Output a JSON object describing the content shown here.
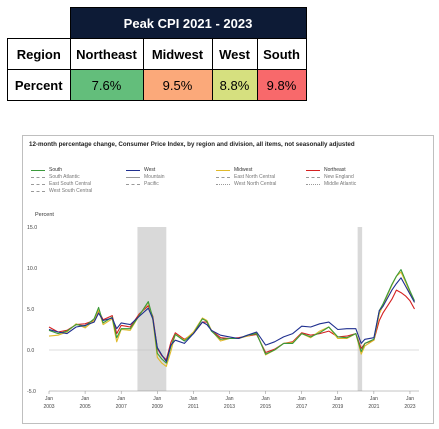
{
  "summary_table": {
    "title": "Peak CPI 2021 - 2023",
    "row_header_region": "Region",
    "row_header_percent": "Percent",
    "regions": [
      {
        "name": "Northeast",
        "value": "7.6%",
        "color": "#63be7b"
      },
      {
        "name": "Midwest",
        "value": "9.5%",
        "color": "#fba97a"
      },
      {
        "name": "West",
        "value": "8.8%",
        "color": "#d6e07f"
      },
      {
        "name": "South",
        "value": "9.8%",
        "color": "#f8696b"
      }
    ]
  },
  "chart_data": {
    "type": "line",
    "title": "12-month percentage change, Consumer Price Index, by region and division, all items, not seasonally adjusted",
    "ylabel": "Percent",
    "xlabel": "",
    "ylim": [
      -5.0,
      15.0
    ],
    "y_ticks": [
      "15.0",
      "10.0",
      "5.0",
      "0.0",
      "-5.0"
    ],
    "y_tick_values": [
      15,
      10,
      5,
      0,
      -5
    ],
    "xlim": [
      2003,
      2023.5
    ],
    "x_ticks": [
      {
        "year": 2003,
        "top": "Jan",
        "bottom": "2003"
      },
      {
        "year": 2005,
        "top": "Jan",
        "bottom": "2005"
      },
      {
        "year": 2007,
        "top": "Jan",
        "bottom": "2007"
      },
      {
        "year": 2009,
        "top": "Jan",
        "bottom": "2009"
      },
      {
        "year": 2011,
        "top": "Jan",
        "bottom": "2011"
      },
      {
        "year": 2013,
        "top": "Jan",
        "bottom": "2013"
      },
      {
        "year": 2015,
        "top": "Jan",
        "bottom": "2015"
      },
      {
        "year": 2017,
        "top": "Jan",
        "bottom": "2017"
      },
      {
        "year": 2019,
        "top": "Jan",
        "bottom": "2019"
      },
      {
        "year": 2021,
        "top": "Jan",
        "bottom": "2021"
      },
      {
        "year": 2023,
        "top": "Jan",
        "bottom": "2023"
      }
    ],
    "recessions": [
      {
        "start": 2007.9,
        "end": 2009.5
      },
      {
        "start": 2020.1,
        "end": 2020.35
      }
    ],
    "legend": {
      "main": [
        {
          "name": "South",
          "color": "#3a9a3a"
        },
        {
          "name": "West",
          "color": "#1f2f8f"
        },
        {
          "name": "Midwest",
          "color": "#e0b92a"
        },
        {
          "name": "Northeast",
          "color": "#d42020"
        }
      ],
      "divisions": [
        {
          "name": "South Atlantic",
          "style": "dash"
        },
        {
          "name": "Mountain",
          "style": "solid"
        },
        {
          "name": "East North Central",
          "style": "dash"
        },
        {
          "name": "New England",
          "style": "dash"
        },
        {
          "name": "East South Central",
          "style": "dash"
        },
        {
          "name": "Pacific",
          "style": "dash"
        },
        {
          "name": "West North Central",
          "style": "dashdot"
        },
        {
          "name": "Middle Atlantic",
          "style": "dashdot"
        },
        {
          "name": "West South Central",
          "style": "dash"
        }
      ]
    },
    "series": [
      {
        "name": "Northeast",
        "color": "#d42020",
        "x": [
          2003,
          2003.5,
          2004,
          2004.5,
          2005,
          2005.5,
          2005.75,
          2006,
          2006.5,
          2006.75,
          2007,
          2007.5,
          2008,
          2008.5,
          2008.75,
          2009,
          2009.25,
          2009.5,
          2009.75,
          2010,
          2010.5,
          2011,
          2011.5,
          2011.75,
          2012,
          2012.5,
          2013,
          2013.5,
          2014,
          2014.5,
          2015,
          2015.5,
          2016,
          2016.5,
          2017,
          2017.5,
          2018,
          2018.5,
          2019,
          2019.5,
          2020,
          2020.3,
          2020.5,
          2021,
          2021.3,
          2021.5,
          2022,
          2022.25,
          2022.5,
          2022.75,
          2023,
          2023.25
        ],
        "y": [
          2.8,
          2.2,
          2.4,
          3.1,
          3.2,
          3.6,
          4.8,
          3.7,
          4.2,
          2.0,
          3.0,
          2.8,
          4.4,
          5.4,
          4.1,
          0.2,
          -0.7,
          -1.2,
          0.9,
          2.1,
          1.3,
          2.0,
          3.4,
          3.4,
          2.4,
          1.5,
          1.4,
          1.5,
          1.7,
          1.9,
          -0.3,
          0.1,
          0.8,
          1.0,
          2.1,
          1.8,
          2.0,
          2.3,
          1.6,
          1.7,
          2.0,
          0.2,
          0.8,
          1.2,
          3.6,
          4.5,
          6.2,
          7.3,
          7.0,
          6.6,
          6.0,
          5.0
        ]
      },
      {
        "name": "Midwest",
        "color": "#e0b92a",
        "x": [
          2003,
          2003.5,
          2004,
          2004.5,
          2005,
          2005.5,
          2005.75,
          2006,
          2006.5,
          2006.75,
          2007,
          2007.5,
          2008,
          2008.5,
          2008.75,
          2009,
          2009.25,
          2009.5,
          2009.75,
          2010,
          2010.5,
          2011,
          2011.5,
          2011.75,
          2012,
          2012.5,
          2013,
          2013.5,
          2014,
          2014.5,
          2015,
          2015.5,
          2016,
          2016.5,
          2017,
          2017.5,
          2018,
          2018.5,
          2019,
          2019.5,
          2020,
          2020.3,
          2020.5,
          2021,
          2021.3,
          2021.5,
          2022,
          2022.25,
          2022.5,
          2022.75,
          2023,
          2023.25
        ],
        "y": [
          1.7,
          1.8,
          2.2,
          3.2,
          2.7,
          3.6,
          4.9,
          3.1,
          3.8,
          1.0,
          2.5,
          2.4,
          4.2,
          5.8,
          3.7,
          -0.9,
          -1.6,
          -2.0,
          -0.2,
          1.9,
          1.2,
          2.2,
          3.9,
          3.6,
          2.4,
          1.1,
          1.4,
          1.4,
          1.7,
          2.1,
          -0.6,
          0.0,
          0.8,
          0.9,
          2.0,
          1.5,
          2.3,
          2.8,
          1.4,
          1.4,
          2.0,
          -0.5,
          0.5,
          1.2,
          4.4,
          5.4,
          7.9,
          9.0,
          9.5,
          8.3,
          7.0,
          5.8
        ]
      },
      {
        "name": "South",
        "color": "#3a9a3a",
        "x": [
          2003,
          2003.5,
          2004,
          2004.5,
          2005,
          2005.5,
          2005.75,
          2006,
          2006.5,
          2006.75,
          2007,
          2007.5,
          2008,
          2008.5,
          2008.75,
          2009,
          2009.25,
          2009.5,
          2009.75,
          2010,
          2010.5,
          2011,
          2011.5,
          2011.75,
          2012,
          2012.5,
          2013,
          2013.5,
          2014,
          2014.5,
          2015,
          2015.5,
          2016,
          2016.5,
          2017,
          2017.5,
          2018,
          2018.5,
          2019,
          2019.5,
          2020,
          2020.3,
          2020.5,
          2021,
          2021.3,
          2021.5,
          2022,
          2022.25,
          2022.5,
          2022.75,
          2023,
          2023.25
        ],
        "y": [
          2.4,
          2.0,
          2.3,
          3.1,
          2.9,
          3.8,
          5.2,
          3.3,
          4.0,
          1.5,
          2.6,
          2.6,
          4.2,
          5.9,
          3.9,
          -0.4,
          -1.1,
          -1.6,
          0.4,
          1.9,
          1.1,
          2.0,
          3.8,
          3.5,
          2.3,
          1.3,
          1.4,
          1.4,
          1.8,
          2.0,
          -0.5,
          0.0,
          0.8,
          0.8,
          2.0,
          1.6,
          2.1,
          2.8,
          1.6,
          1.5,
          2.0,
          -0.2,
          0.8,
          1.3,
          4.8,
          5.6,
          8.0,
          9.0,
          9.8,
          8.5,
          7.2,
          6.0
        ]
      },
      {
        "name": "West",
        "color": "#1f2f8f",
        "x": [
          2003,
          2003.5,
          2004,
          2004.5,
          2005,
          2005.5,
          2005.75,
          2006,
          2006.5,
          2006.75,
          2007,
          2007.5,
          2008,
          2008.5,
          2008.75,
          2009,
          2009.25,
          2009.5,
          2009.75,
          2010,
          2010.5,
          2011,
          2011.5,
          2011.75,
          2012,
          2012.5,
          2013,
          2013.5,
          2014,
          2014.5,
          2015,
          2015.5,
          2016,
          2016.5,
          2017,
          2017.5,
          2018,
          2018.5,
          2019,
          2019.5,
          2020,
          2020.3,
          2020.5,
          2021,
          2021.3,
          2021.5,
          2022,
          2022.25,
          2022.5,
          2022.75,
          2023,
          2023.25
        ],
        "y": [
          2.5,
          2.2,
          2.0,
          2.8,
          3.0,
          3.4,
          4.5,
          3.6,
          3.9,
          2.6,
          3.3,
          3.1,
          4.1,
          5.1,
          3.8,
          0.3,
          -0.6,
          -1.4,
          0.6,
          1.2,
          0.8,
          2.0,
          3.4,
          3.1,
          2.4,
          1.8,
          1.6,
          1.4,
          1.8,
          2.2,
          0.6,
          1.0,
          1.6,
          2.0,
          2.9,
          2.8,
          3.2,
          3.4,
          2.5,
          2.6,
          2.6,
          0.8,
          1.3,
          1.5,
          4.8,
          5.3,
          7.3,
          8.1,
          8.8,
          7.8,
          6.8,
          5.8
        ]
      }
    ]
  }
}
